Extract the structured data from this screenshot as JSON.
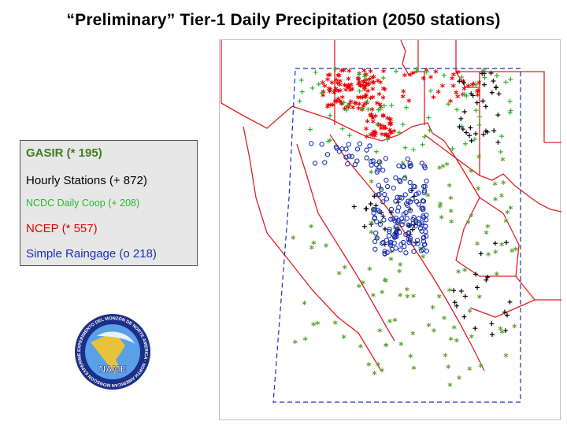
{
  "title": "“Preliminary” Tier-1 Daily Precipitation (2050 stations)",
  "legend": {
    "items": [
      {
        "label": "GASIR (* 195)",
        "color": "#3f7d1a"
      },
      {
        "label": "Hourly Stations (+ 872)",
        "color": "#000000"
      },
      {
        "label": "NCDC Daily Coop (+ 208)",
        "color": "#2bb52b"
      },
      {
        "label": "NCEP (* 557)",
        "color": "#e60000"
      },
      {
        "label": "Simple Raingage (o 218)",
        "color": "#1a2fb0"
      }
    ]
  },
  "map": {
    "colors": {
      "boundary": "#e02020",
      "domain_box": "#1a2fb0",
      "gasir": "#5a9e2a",
      "hourly": "#000000",
      "ncdc": "#2bb52b",
      "ncep": "#e60000",
      "raingage": "#1a2fb0"
    }
  },
  "logo": {
    "text": "NAME",
    "ring_text": "EXPERIMENTO DEL MONZÓN DE NORTE AMERICA · NORTH AMERICAN MONSOON EXPERIMENT",
    "colors": {
      "ring": "#1c2f88",
      "sky": "#5aa0e8",
      "land": "#e8c23a"
    }
  }
}
